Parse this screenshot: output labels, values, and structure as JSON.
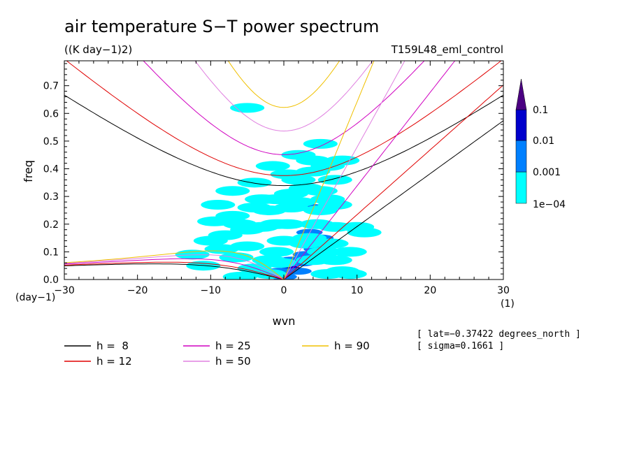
{
  "chart_data": {
    "type": "heatmap",
    "title": "air temperature S−T power spectrum",
    "units": "((K day−1)2)",
    "run_label": "T159L48_eml_control",
    "xlabel": "wvn",
    "ylabel": "freq",
    "x_unit": "(1)",
    "y_unit": "(day−1)",
    "xlim": [
      -30,
      30
    ],
    "ylim": [
      0,
      0.79
    ],
    "x_ticks": [
      "−30",
      "−20",
      "−10",
      "0",
      "10",
      "20",
      "30"
    ],
    "y_ticks": [
      "0.0",
      "0.1",
      "0.2",
      "0.3",
      "0.4",
      "0.5",
      "0.6",
      "0.7"
    ],
    "colorbar": {
      "labels": [
        "0.1",
        "0.01",
        "0.001",
        "1e−04"
      ],
      "levels": [
        0.0001,
        0.001,
        0.01,
        0.1
      ],
      "colors": [
        "#00ffff",
        "#0080ff",
        "#0000cc",
        "#4b0082"
      ]
    },
    "series": [
      {
        "name": "h =  8",
        "h": 8,
        "color": "#000000"
      },
      {
        "name": "h = 12",
        "h": 12,
        "color": "#e00000"
      },
      {
        "name": "h = 25",
        "h": 25,
        "color": "#d000c0"
      },
      {
        "name": "h = 50",
        "h": 50,
        "color": "#e080e0"
      },
      {
        "name": "h = 90",
        "h": 90,
        "color": "#f0c000"
      }
    ],
    "spectrum_patches": [
      {
        "x": 1.0,
        "y": 0.04,
        "level": 2
      },
      {
        "x": -0.5,
        "y": 0.03,
        "level": 1
      },
      {
        "x": 1.0,
        "y": 0.07,
        "level": 1
      },
      {
        "x": 3.0,
        "y": 0.09,
        "level": 1
      },
      {
        "x": 3.5,
        "y": 0.17,
        "level": 1
      },
      {
        "x": 5.0,
        "y": 0.2,
        "level": 1
      },
      {
        "x": 5.0,
        "y": 0.15,
        "level": 1
      },
      {
        "x": 4.5,
        "y": 0.11,
        "level": 1
      },
      {
        "x": 2.5,
        "y": 0.06,
        "level": 1
      },
      {
        "x": 4.0,
        "y": 0.26,
        "level": 1
      },
      {
        "x": 0.0,
        "y": 0.01,
        "level": 1
      },
      {
        "x": 2.0,
        "y": 0.03,
        "level": 1
      },
      {
        "x": 3.0,
        "y": 0.13,
        "level": 0
      },
      {
        "x": 4.0,
        "y": 0.07,
        "level": 0
      },
      {
        "x": 5.5,
        "y": 0.1,
        "level": 0
      },
      {
        "x": 3.5,
        "y": 0.15,
        "level": 0
      },
      {
        "x": 4.5,
        "y": 0.2,
        "level": 0
      },
      {
        "x": 5.0,
        "y": 0.25,
        "level": 0
      },
      {
        "x": 6.0,
        "y": 0.29,
        "level": 0
      },
      {
        "x": 3.0,
        "y": 0.33,
        "level": 0
      },
      {
        "x": 2.0,
        "y": 0.28,
        "level": 0
      },
      {
        "x": 1.0,
        "y": 0.26,
        "level": 0
      },
      {
        "x": 2.0,
        "y": 0.36,
        "level": 0
      },
      {
        "x": 4.0,
        "y": 0.39,
        "level": 0
      },
      {
        "x": 6.0,
        "y": 0.41,
        "level": 0
      },
      {
        "x": 5.0,
        "y": 0.49,
        "level": 0
      },
      {
        "x": 8.0,
        "y": 0.43,
        "level": 0
      },
      {
        "x": 7.0,
        "y": 0.36,
        "level": 0
      },
      {
        "x": 7.0,
        "y": 0.19,
        "level": 0
      },
      {
        "x": 6.5,
        "y": 0.13,
        "level": 0
      },
      {
        "x": 7.0,
        "y": 0.07,
        "level": 0
      },
      {
        "x": 6.0,
        "y": 0.02,
        "level": 0
      },
      {
        "x": 8.0,
        "y": 0.03,
        "level": 0
      },
      {
        "x": 9.0,
        "y": 0.1,
        "level": 0
      },
      {
        "x": 10.0,
        "y": 0.19,
        "level": 0
      },
      {
        "x": 11.0,
        "y": 0.17,
        "level": 0
      },
      {
        "x": -0.5,
        "y": 0.06,
        "level": 0
      },
      {
        "x": -1.0,
        "y": 0.1,
        "level": 0
      },
      {
        "x": -2.0,
        "y": 0.07,
        "level": 0
      },
      {
        "x": 0.0,
        "y": 0.14,
        "level": 0
      },
      {
        "x": -1.0,
        "y": 0.2,
        "level": 0
      },
      {
        "x": -2.0,
        "y": 0.25,
        "level": 0
      },
      {
        "x": -3.0,
        "y": 0.29,
        "level": 0
      },
      {
        "x": -4.0,
        "y": 0.26,
        "level": 0
      },
      {
        "x": -1.0,
        "y": 0.29,
        "level": 0
      },
      {
        "x": 1.0,
        "y": 0.31,
        "level": 0
      },
      {
        "x": -3.0,
        "y": 0.19,
        "level": 0
      },
      {
        "x": -5.0,
        "y": 0.18,
        "level": 0
      },
      {
        "x": -6.0,
        "y": 0.2,
        "level": 0
      },
      {
        "x": -7.0,
        "y": 0.23,
        "level": 0
      },
      {
        "x": -8.0,
        "y": 0.16,
        "level": 0
      },
      {
        "x": -5.0,
        "y": 0.12,
        "level": 0
      },
      {
        "x": -6.5,
        "y": 0.08,
        "level": 0
      },
      {
        "x": -8.5,
        "y": 0.11,
        "level": 0
      },
      {
        "x": -10.0,
        "y": 0.14,
        "level": 0
      },
      {
        "x": -9.0,
        "y": 0.27,
        "level": 0
      },
      {
        "x": -7.0,
        "y": 0.32,
        "level": 0
      },
      {
        "x": -4.0,
        "y": 0.35,
        "level": 0
      },
      {
        "x": -2.0,
        "y": 0.02,
        "level": 0
      },
      {
        "x": -4.0,
        "y": 0.04,
        "level": 0
      },
      {
        "x": -6.0,
        "y": 0.01,
        "level": 0
      },
      {
        "x": -11.0,
        "y": 0.05,
        "level": 0
      },
      {
        "x": -12.5,
        "y": 0.09,
        "level": 0
      },
      {
        "x": -9.5,
        "y": 0.21,
        "level": 0
      },
      {
        "x": 0.5,
        "y": 0.2,
        "level": 0
      },
      {
        "x": 2.0,
        "y": 0.45,
        "level": 0
      },
      {
        "x": -1.5,
        "y": 0.41,
        "level": 0
      },
      {
        "x": 4.0,
        "y": 0.43,
        "level": 0
      },
      {
        "x": 7.0,
        "y": 0.27,
        "level": 0
      },
      {
        "x": 9.0,
        "y": 0.02,
        "level": 0
      },
      {
        "x": 0.5,
        "y": 0.38,
        "level": 0
      },
      {
        "x": 5.0,
        "y": 0.32,
        "level": 0
      },
      {
        "x": -5.0,
        "y": 0.62,
        "level": 0
      }
    ]
  },
  "info": {
    "lat": "[ lat=−0.37422 degrees_north ]",
    "sigma": "[ sigma=0.1661 ]"
  }
}
